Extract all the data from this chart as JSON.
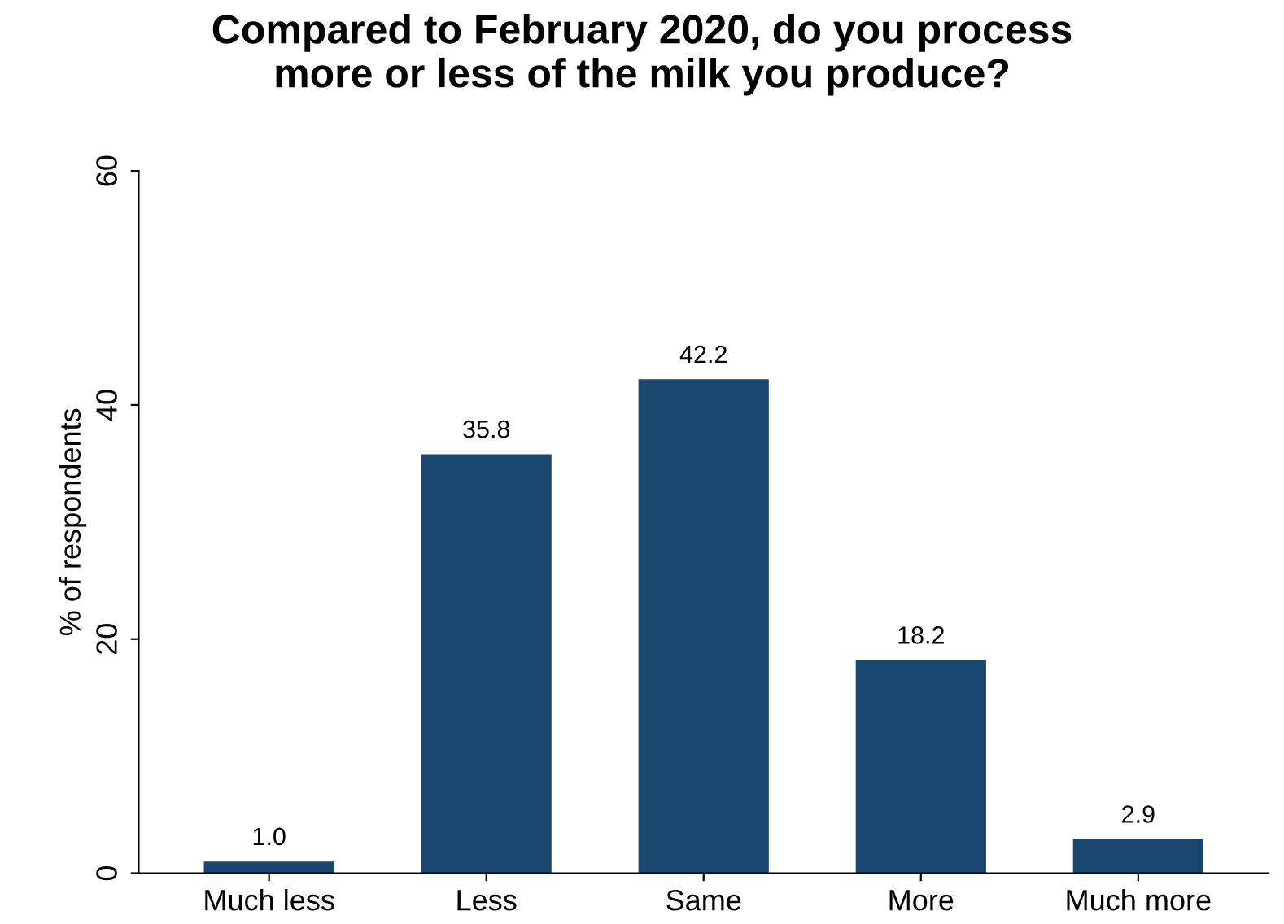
{
  "chart_data": {
    "type": "bar",
    "title": "Compared to February 2020, do you process\nmore or less of the milk you produce?",
    "ylabel": "% of respondents",
    "categories": [
      "Much less",
      "Less",
      "Same",
      "More",
      "Much more"
    ],
    "values": [
      1.0,
      35.8,
      42.2,
      18.2,
      2.9
    ],
    "value_labels": [
      "1.0",
      "35.8",
      "42.2",
      "18.2",
      "2.9"
    ],
    "color": "#1a476f",
    "ylim": [
      0,
      60
    ],
    "yticks": [
      0,
      20,
      40,
      60
    ],
    "grid": false,
    "legend": false
  }
}
